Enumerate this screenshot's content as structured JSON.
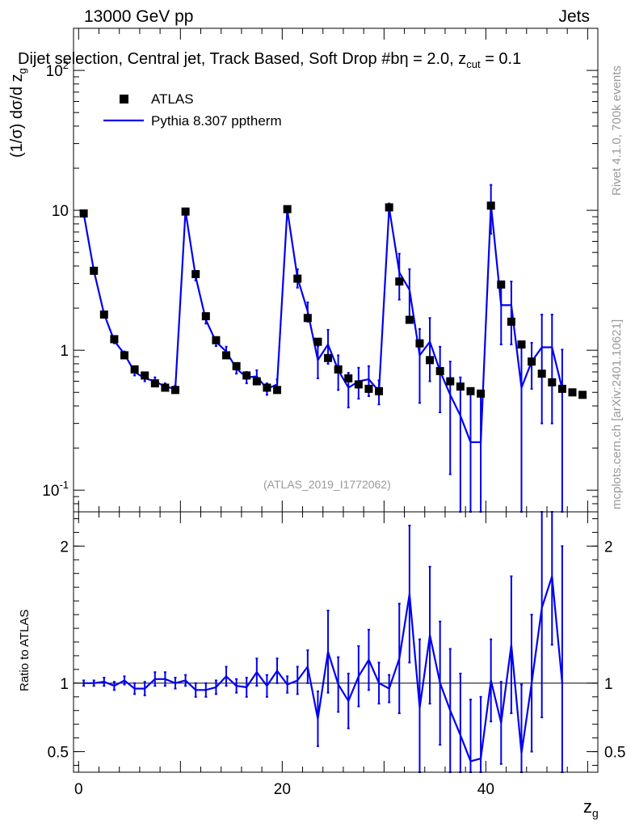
{
  "header": {
    "left": "13000 GeV pp",
    "right": "Jets",
    "subtitle": "Dijet selection, Central jet, Track Based, Soft Drop #b",
    "param_eta": "η = 2.0, z",
    "param_sub": "cut",
    "param_val": " = 0.1"
  },
  "side": {
    "rivet": "Rivet 4.1.0,  700k events",
    "mcplots": "mcplots.cern.ch [arXiv:2401.10621]"
  },
  "analysis_id": "(ATLAS_2019_I1772062)",
  "legend": {
    "data_label": "ATLAS",
    "mc_label": "Pythia 8.307 pptherm"
  },
  "axes": {
    "ylabel_main": "(1/σ) dσ/d z",
    "ylabel_main_sub": "g",
    "ylabel_ratio": "Ratio to ATLAS",
    "xlabel": "z",
    "xlabel_sub": "g"
  },
  "colors": {
    "data": "#000000",
    "mc": "#0000ee"
  },
  "chart_data": [
    {
      "type": "scatter",
      "title": "Dijet selection, Central jet, Track Based, Soft Drop",
      "ylabel": "(1/σ) dσ/d z_g",
      "yscale": "log",
      "xlim": [
        -0.5,
        51
      ],
      "ylim": [
        0.07,
        200
      ],
      "ytick_labels": [
        "10^{-1}",
        "1",
        "10",
        "10^{2}"
      ],
      "series": [
        {
          "name": "ATLAS",
          "x": [
            0.5,
            1.5,
            2.5,
            3.5,
            4.5,
            5.5,
            6.5,
            7.5,
            8.5,
            9.5,
            10.5,
            11.5,
            12.5,
            13.5,
            14.5,
            15.5,
            16.5,
            17.5,
            18.5,
            19.5,
            20.5,
            21.5,
            22.5,
            23.5,
            24.5,
            25.5,
            26.5,
            27.5,
            28.5,
            29.5,
            30.5,
            31.5,
            32.5,
            33.5,
            34.5,
            35.5,
            36.5,
            37.5,
            38.5,
            39.5,
            40.5,
            41.5,
            42.5,
            43.5,
            44.5,
            45.5,
            46.5,
            47.5,
            48.5,
            49.5
          ],
          "values": [
            9.5,
            3.7,
            1.8,
            1.2,
            0.92,
            0.73,
            0.66,
            0.58,
            0.54,
            0.52,
            9.8,
            3.5,
            1.75,
            1.18,
            0.92,
            0.77,
            0.66,
            0.6,
            0.54,
            0.52,
            10.2,
            3.25,
            1.7,
            1.15,
            0.88,
            0.73,
            0.63,
            0.57,
            0.53,
            0.51,
            10.5,
            3.1,
            1.65,
            1.12,
            0.85,
            0.71,
            0.6,
            0.55,
            0.51,
            0.49,
            10.8,
            2.95,
            1.6,
            1.1,
            0.83,
            0.68,
            0.59,
            0.53,
            0.5,
            0.48
          ]
        },
        {
          "name": "Pythia 8.307 pptherm",
          "x": [
            0.5,
            1.5,
            2.5,
            3.5,
            4.5,
            5.5,
            6.5,
            7.5,
            8.5,
            9.5,
            10.5,
            11.5,
            12.5,
            13.5,
            14.5,
            15.5,
            16.5,
            17.5,
            18.5,
            19.5,
            20.5,
            21.5,
            22.5,
            23.5,
            24.5,
            25.5,
            26.5,
            27.5,
            28.5,
            29.5,
            30.5,
            31.5,
            32.5,
            33.5,
            34.5,
            35.5,
            36.5,
            37.5,
            38.5,
            39.5,
            40.5,
            41.5,
            42.5,
            43.5,
            44.5,
            45.5,
            46.5,
            47.5
          ],
          "values": [
            9.5,
            3.7,
            1.82,
            1.17,
            0.94,
            0.7,
            0.63,
            0.6,
            0.55,
            0.53,
            9.9,
            3.35,
            1.65,
            1.15,
            0.98,
            0.74,
            0.64,
            0.65,
            0.53,
            0.57,
            10.1,
            3.3,
            1.9,
            0.85,
            1.1,
            0.72,
            0.54,
            0.6,
            0.62,
            0.51,
            10.4,
            3.6,
            2.7,
            0.92,
            1.15,
            0.71,
            0.48,
            0.34,
            0.22,
            0.22,
            11.0,
            2.1,
            2.1,
            0.54,
            0.83,
            1.05,
            1.05,
            0.53
          ],
          "err": [
            0.2,
            0.1,
            0.07,
            0.05,
            0.04,
            0.04,
            0.03,
            0.04,
            0.03,
            0.03,
            0.4,
            0.2,
            0.1,
            0.08,
            0.08,
            0.06,
            0.06,
            0.07,
            0.05,
            0.05,
            0.5,
            0.5,
            0.3,
            0.22,
            0.3,
            0.2,
            0.15,
            0.15,
            0.15,
            0.1,
            0.8,
            1.3,
            1.1,
            0.5,
            0.55,
            0.35,
            0.35,
            0.3,
            0.28,
            0.28,
            4.2,
            1.0,
            1.0,
            0.5,
            0.3,
            0.75,
            0.75,
            0.48
          ]
        }
      ]
    },
    {
      "type": "line",
      "title": "Ratio to ATLAS",
      "ylabel": "Ratio to ATLAS",
      "xlabel": "z_g",
      "xlim": [
        -0.5,
        51
      ],
      "ylim": [
        0.35,
        2.25
      ],
      "yticks": [
        0.5,
        1,
        2
      ],
      "xticks": [
        0,
        20,
        40
      ],
      "reference_line": 1,
      "series": [
        {
          "name": "Pythia 8.307 pptherm",
          "x": [
            0.5,
            1.5,
            2.5,
            3.5,
            4.5,
            5.5,
            6.5,
            7.5,
            8.5,
            9.5,
            10.5,
            11.5,
            12.5,
            13.5,
            14.5,
            15.5,
            16.5,
            17.5,
            18.5,
            19.5,
            20.5,
            21.5,
            22.5,
            23.5,
            24.5,
            25.5,
            26.5,
            27.5,
            28.5,
            29.5,
            30.5,
            31.5,
            32.5,
            33.5,
            34.5,
            35.5,
            36.5,
            37.5,
            38.5,
            39.5,
            40.5,
            41.5,
            42.5,
            43.5,
            44.5,
            45.5,
            46.5,
            47.5
          ],
          "values": [
            1.0,
            1.0,
            1.01,
            0.98,
            1.02,
            0.96,
            0.96,
            1.03,
            1.03,
            1.0,
            1.02,
            0.95,
            0.95,
            0.97,
            1.05,
            0.98,
            0.97,
            1.08,
            0.98,
            1.09,
            0.99,
            1.02,
            1.12,
            0.74,
            1.23,
            0.99,
            0.87,
            1.05,
            1.17,
            1.0,
            0.96,
            1.18,
            1.65,
            0.82,
            1.35,
            1.0,
            0.8,
            0.62,
            0.43,
            0.45,
            1.02,
            0.71,
            1.28,
            0.49,
            1.0,
            1.55,
            1.78,
            1.0
          ],
          "err": [
            0.02,
            0.02,
            0.03,
            0.03,
            0.03,
            0.04,
            0.05,
            0.05,
            0.05,
            0.04,
            0.04,
            0.05,
            0.05,
            0.05,
            0.07,
            0.05,
            0.07,
            0.1,
            0.08,
            0.09,
            0.06,
            0.1,
            0.12,
            0.2,
            0.3,
            0.2,
            0.2,
            0.22,
            0.22,
            0.15,
            0.1,
            0.4,
            0.5,
            0.5,
            0.5,
            0.45,
            0.45,
            0.45,
            0.45,
            0.45,
            0.3,
            0.3,
            0.5,
            0.5,
            0.5,
            0.8,
            0.5,
            1.0
          ]
        }
      ]
    }
  ]
}
